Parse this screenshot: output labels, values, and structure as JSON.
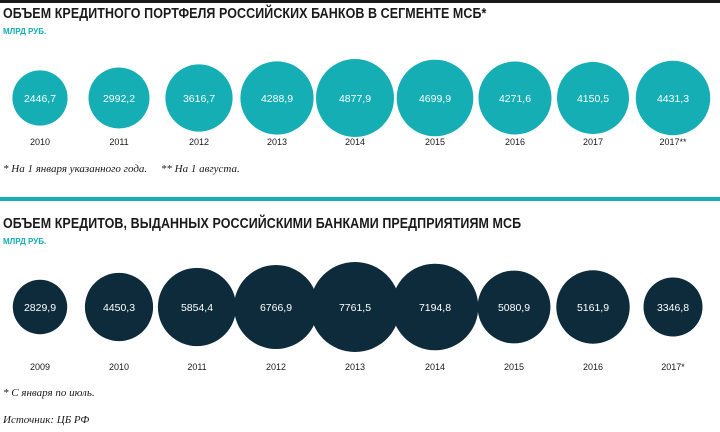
{
  "colors": {
    "teal": "#14aeb4",
    "navy": "#0d2b3a",
    "rule": "#14aeb4"
  },
  "chart_data": [
    {
      "type": "bubble",
      "title": "ОБЪЕМ КРЕДИТНОГО ПОРТФЕЛЯ РОССИЙСКИХ БАНКОВ В СЕГМЕНТЕ МСБ*",
      "unit": "МЛРД РУБ.",
      "categories": [
        "2010",
        "2011",
        "2012",
        "2013",
        "2014",
        "2015",
        "2016",
        "2017",
        "2017**"
      ],
      "values": [
        2446.7,
        2992.2,
        3616.7,
        4288.9,
        4877.9,
        4699.9,
        4271.6,
        4150.5,
        4431.3
      ],
      "value_labels": [
        "2446,7",
        "2992,2",
        "3616,7",
        "4288,9",
        "4877,9",
        "4699,9",
        "4271,6",
        "4150,5",
        "4431,3"
      ],
      "color": "#14aeb4",
      "footnote": "* На 1 января указанного года.     ** На 1 августа."
    },
    {
      "type": "bubble",
      "title": "ОБЪЕМ КРЕДИТОВ, ВЫДАННЫХ РОССИЙСКИМИ БАНКАМИ ПРЕДПРИЯТИЯМ МСБ",
      "unit": "МЛРД РУБ.",
      "categories": [
        "2009",
        "2010",
        "2011",
        "2012",
        "2013",
        "2014",
        "2015",
        "2016",
        "2017*"
      ],
      "values": [
        2829.9,
        4450.3,
        5854.4,
        6766.9,
        7761.5,
        7194.8,
        5080.9,
        5161.9,
        3346.8
      ],
      "value_labels": [
        "2829,9",
        "4450,3",
        "5854,4",
        "6766,9",
        "7761,5",
        "7194,8",
        "5080,9",
        "5161,9",
        "3346,8"
      ],
      "color": "#0d2b3a",
      "footnote": "* С января по июль."
    }
  ],
  "source": "Источник: ЦБ РФ"
}
